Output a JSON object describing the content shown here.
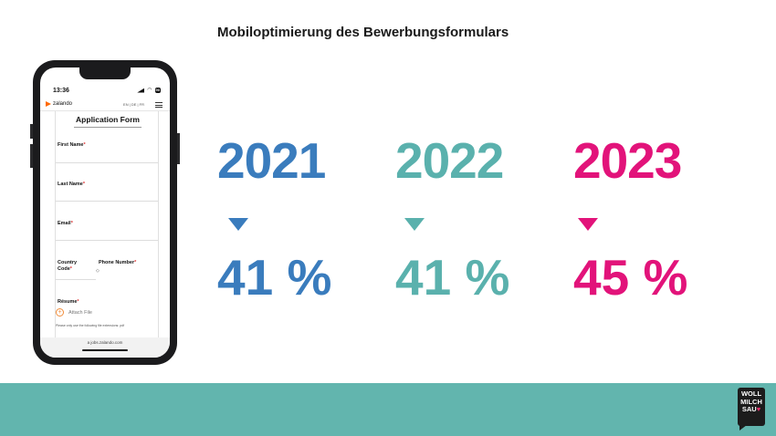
{
  "slide": {
    "title": "Mobiloptimierung des Bewerbungsformulars"
  },
  "phone": {
    "status_time": "13:36",
    "battery": "90",
    "logo": "zalando",
    "languages": "EN | DE | FR",
    "form_title": "Application Form",
    "fields": {
      "first_name": "First Name",
      "last_name": "Last Name",
      "email": "Email",
      "country_code_line1": "Country",
      "country_code_line2": "Code",
      "phone_number": "Phone Number",
      "resume": "Résume"
    },
    "required_mark": "*",
    "stepper": "◇",
    "attach_label": "Attach File",
    "hint": "Please only use the following file extensions: pdf",
    "url": "a jobs.zalando.com"
  },
  "stats": [
    {
      "year": "2021",
      "value": "41 %",
      "color": "#3a7cbd"
    },
    {
      "year": "2022",
      "value": "41 %",
      "color": "#5ab1ad"
    },
    {
      "year": "2023",
      "value": "45 %",
      "color": "#e2137a"
    }
  ],
  "footer": {
    "brand_line1": "WOLL",
    "brand_line2": "MILCH",
    "brand_line3": "SAU",
    "brand_heart": "♥",
    "color": "#62b5ae"
  }
}
